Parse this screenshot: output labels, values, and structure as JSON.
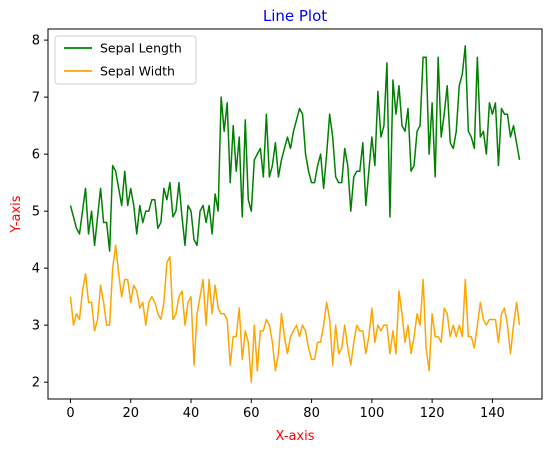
{
  "chart_data": {
    "type": "line",
    "title": "Line Plot",
    "xlabel": "X-axis",
    "ylabel": "Y-axis",
    "xlim": [
      -7.45,
      156.45
    ],
    "ylim": [
      1.705,
      8.195
    ],
    "xticks": [
      0,
      20,
      40,
      60,
      80,
      100,
      120,
      140
    ],
    "yticks": [
      2,
      3,
      4,
      5,
      6,
      7,
      8
    ],
    "grid": false,
    "legend": "top-left",
    "title_color": "#0000ff",
    "xlabel_color": "#ff0000",
    "ylabel_color": "#ff0000",
    "series": [
      {
        "name": "Sepal Length",
        "color": "#008000",
        "values": [
          5.1,
          4.9,
          4.7,
          4.6,
          5.0,
          5.4,
          4.6,
          5.0,
          4.4,
          4.9,
          5.4,
          4.8,
          4.8,
          4.3,
          5.8,
          5.7,
          5.4,
          5.1,
          5.7,
          5.1,
          5.4,
          5.1,
          4.6,
          5.1,
          4.8,
          5.0,
          5.0,
          5.2,
          5.2,
          4.7,
          4.8,
          5.4,
          5.2,
          5.5,
          4.9,
          5.0,
          5.5,
          4.9,
          4.4,
          5.1,
          5.0,
          4.5,
          4.4,
          5.0,
          5.1,
          4.8,
          5.1,
          4.6,
          5.3,
          5.0,
          7.0,
          6.4,
          6.9,
          5.5,
          6.5,
          5.7,
          6.3,
          4.9,
          6.6,
          5.2,
          5.0,
          5.9,
          6.0,
          6.1,
          5.6,
          6.7,
          5.6,
          5.8,
          6.2,
          5.6,
          5.9,
          6.1,
          6.3,
          6.1,
          6.4,
          6.6,
          6.8,
          6.7,
          6.0,
          5.7,
          5.5,
          5.5,
          5.8,
          6.0,
          5.4,
          6.0,
          6.7,
          6.3,
          5.6,
          5.5,
          5.5,
          6.1,
          5.8,
          5.0,
          5.6,
          5.7,
          5.7,
          6.2,
          5.1,
          5.7,
          6.3,
          5.8,
          7.1,
          6.3,
          6.5,
          7.6,
          4.9,
          7.3,
          6.7,
          7.2,
          6.5,
          6.4,
          6.8,
          5.7,
          5.8,
          6.4,
          6.5,
          7.7,
          7.7,
          6.0,
          6.9,
          5.6,
          7.7,
          6.3,
          6.7,
          7.2,
          6.2,
          6.1,
          6.4,
          7.2,
          7.4,
          7.9,
          6.4,
          6.3,
          6.1,
          7.7,
          6.3,
          6.4,
          6.0,
          6.9,
          6.7,
          6.9,
          5.8,
          6.8,
          6.7,
          6.7,
          6.3,
          6.5,
          6.2,
          5.9
        ]
      },
      {
        "name": "Sepal Width",
        "color": "#ffa500",
        "values": [
          3.5,
          3.0,
          3.2,
          3.1,
          3.6,
          3.9,
          3.4,
          3.4,
          2.9,
          3.1,
          3.7,
          3.4,
          3.0,
          3.0,
          4.0,
          4.4,
          3.9,
          3.5,
          3.8,
          3.8,
          3.4,
          3.7,
          3.6,
          3.3,
          3.4,
          3.0,
          3.4,
          3.5,
          3.4,
          3.2,
          3.1,
          3.4,
          4.1,
          4.2,
          3.1,
          3.2,
          3.5,
          3.6,
          3.0,
          3.4,
          3.5,
          2.3,
          3.2,
          3.5,
          3.8,
          3.0,
          3.8,
          3.2,
          3.7,
          3.3,
          3.2,
          3.2,
          3.1,
          2.3,
          2.8,
          2.8,
          3.3,
          2.4,
          2.9,
          2.7,
          2.0,
          3.0,
          2.2,
          2.9,
          2.9,
          3.1,
          3.0,
          2.7,
          2.2,
          2.5,
          3.2,
          2.8,
          2.5,
          2.8,
          2.9,
          3.0,
          2.8,
          3.0,
          2.9,
          2.6,
          2.4,
          2.4,
          2.7,
          2.7,
          3.0,
          3.4,
          3.1,
          2.3,
          3.0,
          2.5,
          2.6,
          3.0,
          2.6,
          2.3,
          2.7,
          3.0,
          2.9,
          2.9,
          2.5,
          2.8,
          3.3,
          2.7,
          3.0,
          2.9,
          3.0,
          3.0,
          2.5,
          2.9,
          2.5,
          3.6,
          3.2,
          2.7,
          3.0,
          2.5,
          2.8,
          3.2,
          3.0,
          3.8,
          2.6,
          2.2,
          3.2,
          2.8,
          2.8,
          2.7,
          3.3,
          3.2,
          2.8,
          3.0,
          2.8,
          3.0,
          2.8,
          3.8,
          2.8,
          2.8,
          2.6,
          3.0,
          3.4,
          3.1,
          3.0,
          3.1,
          3.1,
          3.1,
          2.7,
          3.2,
          3.3,
          3.0,
          2.5,
          3.0,
          3.4,
          3.0
        ]
      }
    ]
  }
}
